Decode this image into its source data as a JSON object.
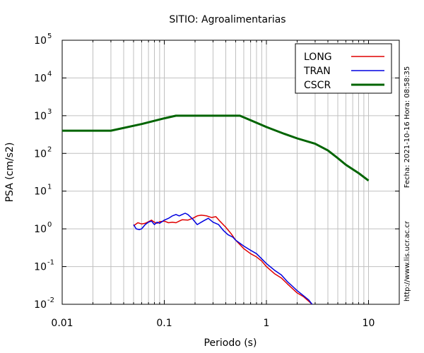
{
  "chart_data": {
    "type": "line",
    "title": "SITIO: Agroalimentarias",
    "xlabel": "Periodo (s)",
    "ylabel": "PSA (cm/s2)",
    "x_scale": "log",
    "y_scale": "log",
    "xlim": [
      0.01,
      20
    ],
    "ylim": [
      0.01,
      100000
    ],
    "x_ticks": [
      {
        "value": 0.01,
        "label": "0.01"
      },
      {
        "value": 0.1,
        "label": "0.1"
      },
      {
        "value": 1,
        "label": "1"
      },
      {
        "value": 10,
        "label": "10"
      }
    ],
    "y_ticks": [
      {
        "value": 0.01,
        "base": "10",
        "exp": "-2"
      },
      {
        "value": 0.1,
        "base": "10",
        "exp": "-1"
      },
      {
        "value": 1,
        "base": "10",
        "exp": "0"
      },
      {
        "value": 10,
        "base": "10",
        "exp": "1"
      },
      {
        "value": 100,
        "base": "10",
        "exp": "2"
      },
      {
        "value": 1000,
        "base": "10",
        "exp": "3"
      },
      {
        "value": 10000,
        "base": "10",
        "exp": "4"
      },
      {
        "value": 100000,
        "base": "10",
        "exp": "5"
      }
    ],
    "grid": true,
    "legend_position": "top-right",
    "series": [
      {
        "name": "LONG",
        "color": "#e00000",
        "x": [
          0.05,
          0.055,
          0.06,
          0.065,
          0.07,
          0.075,
          0.08,
          0.085,
          0.09,
          0.1,
          0.11,
          0.12,
          0.13,
          0.14,
          0.15,
          0.17,
          0.19,
          0.21,
          0.23,
          0.26,
          0.29,
          0.32,
          0.35,
          0.4,
          0.45,
          0.5,
          0.6,
          0.7,
          0.8,
          0.9,
          1.0,
          1.2,
          1.4,
          1.6,
          1.8,
          2.0,
          2.3,
          2.6,
          2.8
        ],
        "y": [
          1.2,
          1.45,
          1.35,
          1.4,
          1.55,
          1.7,
          1.5,
          1.4,
          1.55,
          1.6,
          1.45,
          1.5,
          1.45,
          1.6,
          1.75,
          1.7,
          1.9,
          2.2,
          2.3,
          2.2,
          2.0,
          2.1,
          1.6,
          1.1,
          0.75,
          0.5,
          0.3,
          0.22,
          0.18,
          0.14,
          0.1,
          0.065,
          0.05,
          0.035,
          0.026,
          0.02,
          0.016,
          0.012,
          0.01
        ]
      },
      {
        "name": "TRAN",
        "color": "#0000e0",
        "x": [
          0.05,
          0.053,
          0.057,
          0.06,
          0.065,
          0.07,
          0.075,
          0.08,
          0.085,
          0.09,
          0.1,
          0.11,
          0.12,
          0.13,
          0.14,
          0.15,
          0.16,
          0.17,
          0.19,
          0.21,
          0.24,
          0.27,
          0.3,
          0.34,
          0.38,
          0.42,
          0.47,
          0.5,
          0.6,
          0.7,
          0.8,
          0.9,
          1.0,
          1.2,
          1.4,
          1.6,
          1.8,
          2.0,
          2.3,
          2.6,
          2.8
        ],
        "y": [
          1.3,
          1.0,
          0.95,
          1.0,
          1.3,
          1.5,
          1.6,
          1.3,
          1.5,
          1.4,
          1.7,
          1.9,
          2.2,
          2.4,
          2.2,
          2.4,
          2.6,
          2.4,
          1.8,
          1.3,
          1.6,
          1.9,
          1.5,
          1.3,
          0.9,
          0.7,
          0.6,
          0.5,
          0.35,
          0.27,
          0.22,
          0.16,
          0.12,
          0.08,
          0.06,
          0.04,
          0.03,
          0.023,
          0.017,
          0.013,
          0.01
        ]
      },
      {
        "name": "CSCR",
        "color": "#006400",
        "x": [
          0.01,
          0.03,
          0.06,
          0.1,
          0.13,
          0.55,
          0.8,
          1.0,
          1.5,
          2.0,
          3.0,
          4.0,
          5.0,
          6.0,
          8.0,
          10.0
        ],
        "y": [
          400,
          400,
          600,
          850,
          1000,
          1000,
          650,
          500,
          330,
          250,
          180,
          120,
          75,
          50,
          30,
          19
        ]
      }
    ],
    "side_text_date": "Fecha: 2021-10-16 Hora: 08:58:35",
    "side_text_url": "http://www.lis.ucr.ac.cr"
  }
}
